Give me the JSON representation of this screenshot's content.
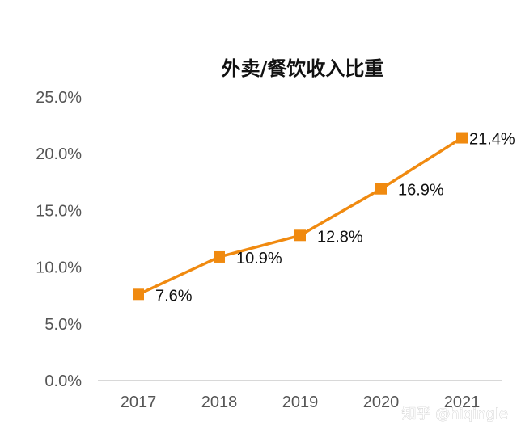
{
  "chart_data": {
    "type": "line",
    "title": "外卖/餐饮收入比重",
    "xlabel": "",
    "ylabel": "",
    "categories": [
      "2017",
      "2018",
      "2019",
      "2020",
      "2021"
    ],
    "series": [
      {
        "values": [
          7.6,
          10.9,
          12.8,
          16.9,
          21.4
        ],
        "labels": [
          "7.6%",
          "10.9%",
          "12.8%",
          "16.9%",
          "21.4%"
        ],
        "color": "#f08a10",
        "marker": "square"
      }
    ],
    "ylim": [
      0,
      25
    ],
    "yticks": [
      0,
      5,
      10,
      15,
      20,
      25
    ],
    "ytick_labels": [
      "0.0%",
      "5.0%",
      "10.0%",
      "15.0%",
      "20.0%",
      "25.0%"
    ],
    "grid": false,
    "legend": "none"
  },
  "watermark": {
    "text": "知乎 @hiqingle"
  },
  "colors": {
    "axis": "#cccccc",
    "tick_text": "#555555",
    "title_text": "#111111"
  }
}
